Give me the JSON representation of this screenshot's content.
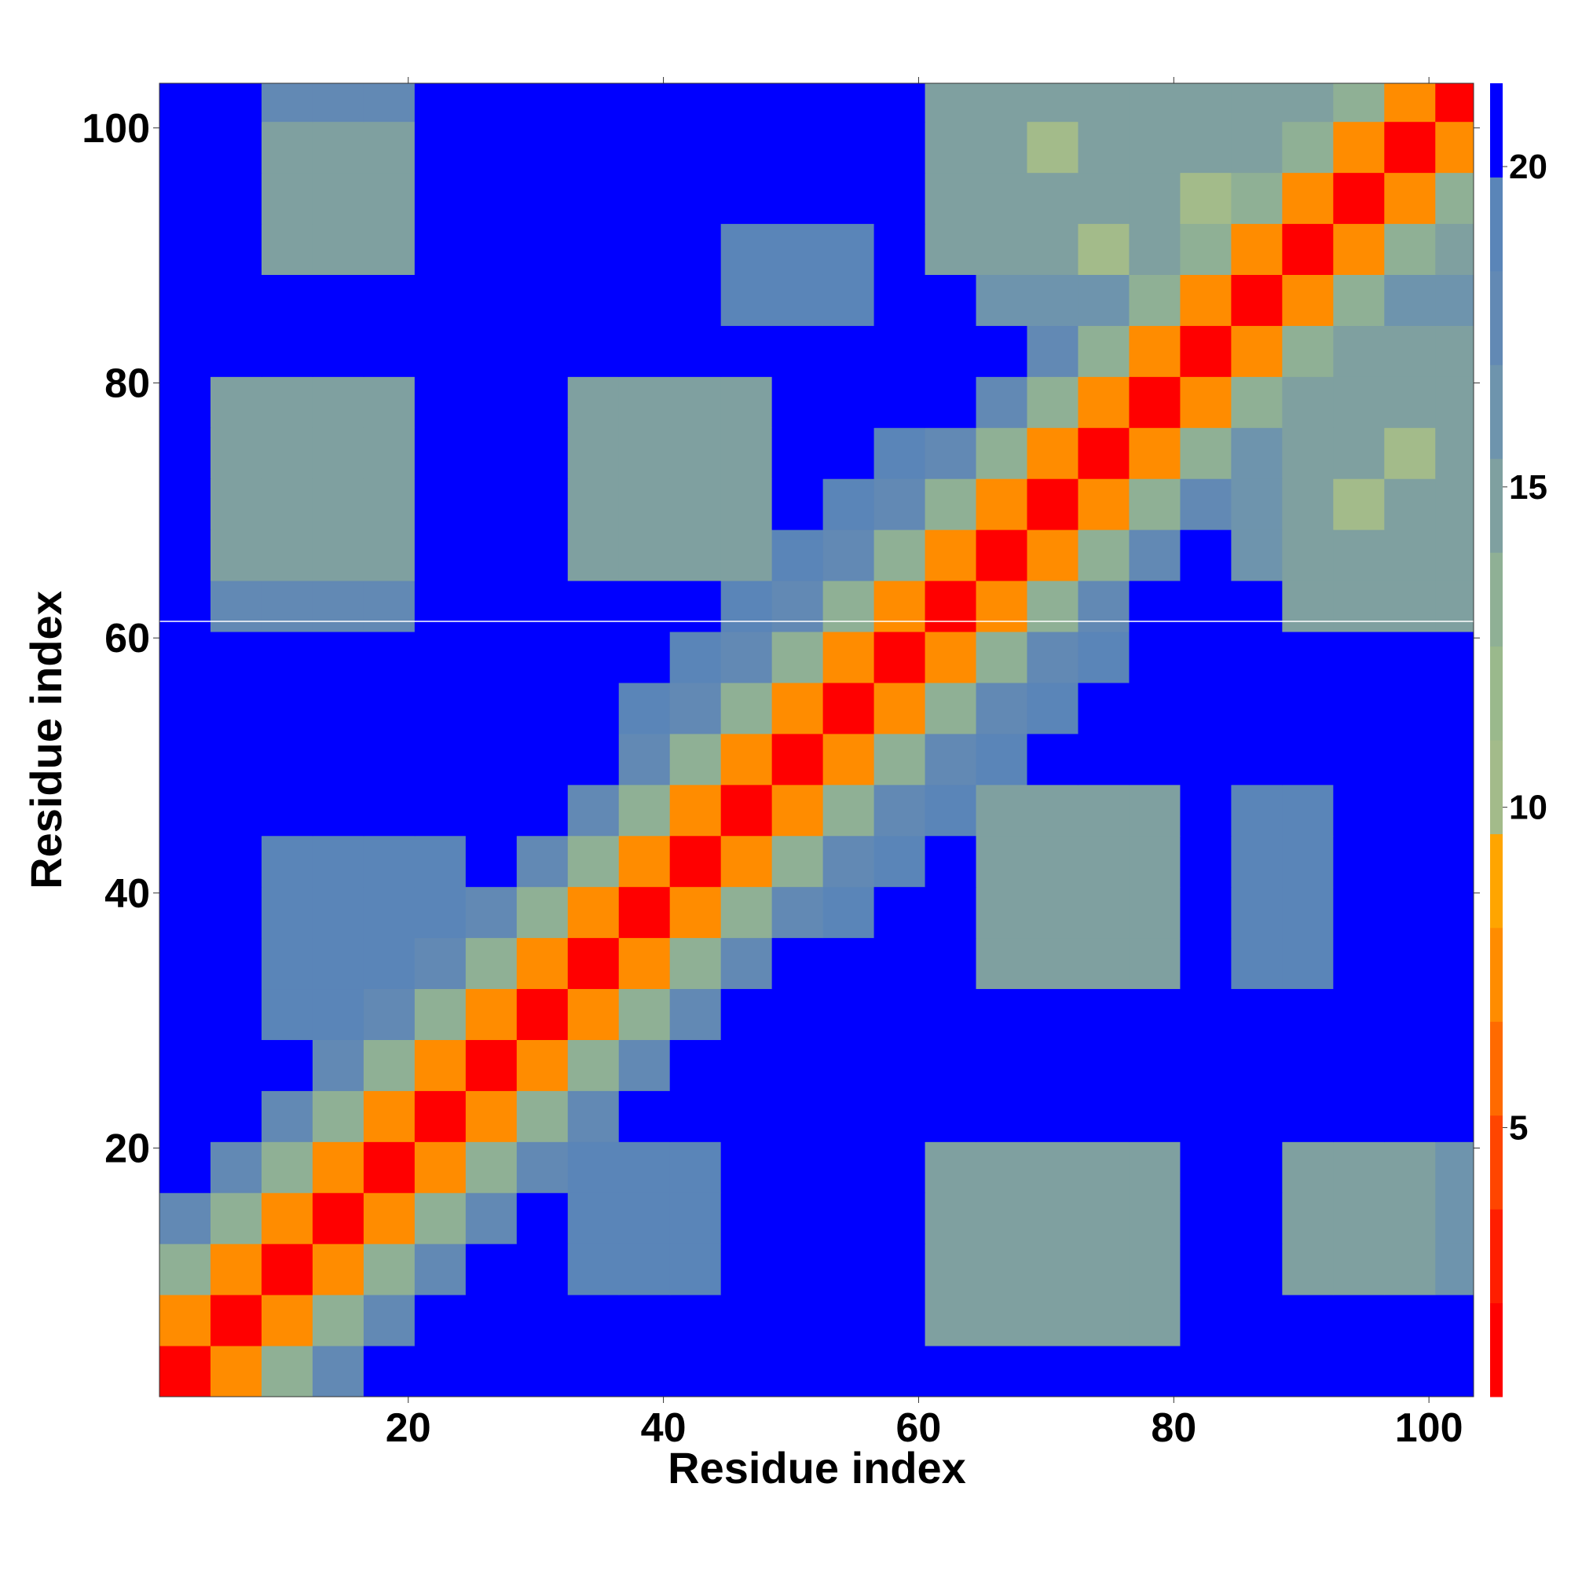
{
  "chart_data": {
    "type": "heatmap",
    "xlabel": "Residue index",
    "ylabel": "Residue index",
    "xlim": [
      0.5,
      103.5
    ],
    "ylim": [
      0.5,
      103.5
    ],
    "xticks": [
      20,
      40,
      60,
      80,
      100
    ],
    "yticks": [
      20,
      40,
      60,
      80,
      100
    ],
    "xbins": [
      0.5,
      4.5,
      8.5,
      12.5,
      16.5,
      20.5,
      24.5,
      28.5,
      32.5,
      36.5,
      40.5,
      44.5,
      48.5,
      52.5,
      56.5,
      60.5,
      64.5,
      68.5,
      72.5,
      76.5,
      80.5,
      84.5,
      88.5,
      92.5,
      96.5,
      100.5,
      103.5
    ],
    "ybins": [
      0.5,
      4.5,
      8.5,
      12.5,
      16.5,
      20.5,
      24.5,
      28.5,
      32.5,
      36.5,
      40.5,
      44.5,
      48.5,
      52.5,
      56.5,
      60.5,
      64.5,
      68.5,
      72.5,
      76.5,
      80.5,
      84.5,
      88.5,
      92.5,
      96.5,
      100.5,
      103.5
    ],
    "values": [
      [
        2,
        8,
        13,
        18,
        22,
        22,
        22,
        22,
        22,
        22,
        22,
        22,
        22,
        22,
        22,
        22,
        22,
        22,
        22,
        22,
        22,
        22,
        22,
        22,
        22,
        22
      ],
      [
        8,
        2,
        8,
        13,
        18,
        22,
        22,
        22,
        22,
        22,
        22,
        22,
        22,
        22,
        22,
        15,
        15,
        15,
        15,
        15,
        22,
        22,
        22,
        22,
        22,
        22
      ],
      [
        13,
        8,
        2,
        8,
        13,
        18,
        22,
        22,
        19,
        19,
        19,
        22,
        22,
        22,
        22,
        15,
        15,
        15,
        15,
        15,
        22,
        22,
        14,
        14,
        14,
        16
      ],
      [
        18,
        13,
        8,
        2,
        8,
        13,
        18,
        22,
        19,
        19,
        19,
        22,
        22,
        22,
        22,
        15,
        15,
        15,
        15,
        15,
        22,
        22,
        14,
        14,
        14,
        16
      ],
      [
        22,
        18,
        13,
        8,
        2,
        8,
        13,
        18,
        19,
        19,
        19,
        22,
        22,
        22,
        22,
        15,
        15,
        15,
        15,
        15,
        22,
        22,
        14,
        14,
        14,
        16
      ],
      [
        22,
        22,
        18,
        13,
        8,
        2,
        8,
        13,
        18,
        22,
        22,
        22,
        22,
        22,
        22,
        22,
        22,
        22,
        22,
        22,
        22,
        22,
        22,
        22,
        22,
        22
      ],
      [
        22,
        22,
        22,
        18,
        13,
        8,
        2,
        8,
        13,
        18,
        22,
        22,
        22,
        22,
        22,
        22,
        22,
        22,
        22,
        22,
        22,
        22,
        22,
        22,
        22,
        22
      ],
      [
        22,
        22,
        19,
        19,
        18,
        13,
        8,
        2,
        8,
        13,
        18,
        22,
        22,
        22,
        22,
        22,
        22,
        22,
        22,
        22,
        22,
        22,
        22,
        22,
        22,
        22
      ],
      [
        22,
        22,
        19,
        19,
        19,
        18,
        13,
        8,
        2,
        8,
        13,
        18,
        22,
        22,
        22,
        22,
        15,
        15,
        15,
        15,
        22,
        19,
        19,
        22,
        22,
        22
      ],
      [
        22,
        22,
        19,
        19,
        19,
        19,
        18,
        13,
        8,
        2,
        8,
        13,
        18,
        19,
        22,
        22,
        15,
        15,
        15,
        15,
        22,
        19,
        19,
        22,
        22,
        22
      ],
      [
        22,
        22,
        19,
        19,
        19,
        19,
        22,
        18,
        13,
        8,
        2,
        8,
        13,
        18,
        19,
        22,
        15,
        15,
        15,
        15,
        22,
        19,
        19,
        22,
        22,
        22
      ],
      [
        22,
        22,
        22,
        22,
        22,
        22,
        22,
        22,
        18,
        13,
        8,
        2,
        8,
        13,
        18,
        19,
        15,
        15,
        15,
        15,
        22,
        19,
        19,
        22,
        22,
        22
      ],
      [
        22,
        22,
        22,
        22,
        22,
        22,
        22,
        22,
        22,
        18,
        13,
        8,
        2,
        8,
        13,
        18,
        19,
        22,
        22,
        22,
        22,
        22,
        22,
        22,
        22,
        22
      ],
      [
        22,
        22,
        22,
        22,
        22,
        22,
        22,
        22,
        22,
        19,
        18,
        13,
        8,
        2,
        8,
        13,
        18,
        19,
        22,
        22,
        22,
        22,
        22,
        22,
        22,
        22
      ],
      [
        22,
        22,
        22,
        22,
        22,
        22,
        22,
        22,
        22,
        22,
        19,
        18,
        13,
        8,
        2,
        8,
        13,
        18,
        19,
        22,
        22,
        22,
        22,
        22,
        22,
        22
      ],
      [
        22,
        18,
        18,
        18,
        18,
        22,
        22,
        22,
        22,
        22,
        22,
        19,
        18,
        13,
        8,
        2,
        8,
        13,
        18,
        22,
        22,
        22,
        15,
        15,
        15,
        15
      ],
      [
        22,
        15,
        15,
        15,
        15,
        22,
        22,
        22,
        15,
        15,
        15,
        15,
        19,
        18,
        13,
        8,
        2,
        8,
        13,
        18,
        22,
        16,
        15,
        15,
        15,
        15
      ],
      [
        22,
        15,
        15,
        15,
        15,
        22,
        22,
        22,
        15,
        15,
        15,
        15,
        22,
        19,
        18,
        13,
        8,
        2,
        8,
        13,
        18,
        16,
        15,
        11,
        15,
        15
      ],
      [
        22,
        15,
        15,
        15,
        15,
        22,
        22,
        22,
        15,
        15,
        15,
        15,
        22,
        22,
        19,
        18,
        13,
        8,
        2,
        8,
        13,
        16,
        15,
        15,
        10,
        15
      ],
      [
        22,
        15,
        15,
        15,
        15,
        22,
        22,
        22,
        15,
        15,
        15,
        15,
        22,
        22,
        22,
        22,
        18,
        13,
        8,
        2,
        8,
        13,
        15,
        15,
        15,
        15
      ],
      [
        22,
        22,
        22,
        22,
        22,
        22,
        22,
        22,
        22,
        22,
        22,
        22,
        22,
        22,
        22,
        22,
        22,
        18,
        13,
        8,
        2,
        8,
        13,
        15,
        15,
        15
      ],
      [
        22,
        22,
        22,
        22,
        22,
        22,
        22,
        22,
        22,
        22,
        22,
        19,
        19,
        19,
        22,
        22,
        16,
        16,
        16,
        13,
        8,
        2,
        8,
        13,
        16,
        16
      ],
      [
        22,
        22,
        14,
        14,
        14,
        22,
        22,
        22,
        22,
        22,
        22,
        19,
        19,
        19,
        22,
        15,
        15,
        15,
        10,
        15,
        13,
        8,
        2,
        8,
        13,
        15
      ],
      [
        22,
        22,
        14,
        14,
        14,
        22,
        22,
        22,
        22,
        22,
        22,
        22,
        22,
        22,
        22,
        15,
        15,
        15,
        15,
        15,
        10,
        13,
        8,
        2,
        8,
        13
      ],
      [
        22,
        22,
        14,
        14,
        14,
        22,
        22,
        22,
        22,
        22,
        22,
        22,
        22,
        22,
        22,
        15,
        15,
        10,
        15,
        15,
        15,
        15,
        13,
        8,
        2,
        8
      ],
      [
        22,
        22,
        17,
        17,
        17,
        22,
        22,
        22,
        22,
        22,
        22,
        22,
        22,
        22,
        22,
        15,
        15,
        15,
        15,
        15,
        15,
        15,
        15,
        13,
        8,
        2
      ]
    ],
    "clim": [
      0.8,
      21.3
    ],
    "cticks": [
      5,
      10,
      15,
      20
    ],
    "colors": [
      "#ff0000",
      "#ff1e00",
      "#ff4500",
      "#ff6a00",
      "#ff8c00",
      "#ffa500",
      "#a3bb8a",
      "#9ab98c",
      "#8fb095",
      "#7fa0a0",
      "#6e94ad",
      "#6289b4",
      "#5a85b8",
      "#0000ff"
    ]
  }
}
